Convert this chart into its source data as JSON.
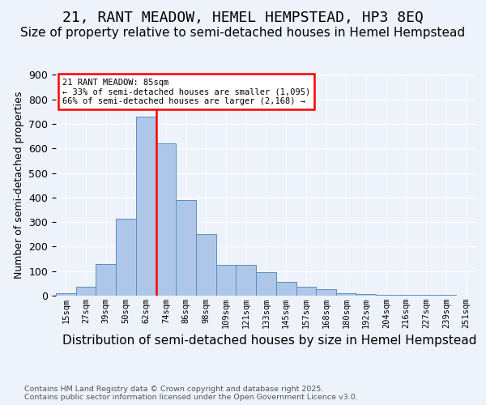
{
  "title": "21, RANT MEADOW, HEMEL HEMPSTEAD, HP3 8EQ",
  "subtitle": "Size of property relative to semi-detached houses in Hemel Hempstead",
  "xlabel": "Distribution of semi-detached houses by size in Hemel Hempstead",
  "ylabel": "Number of semi-detached properties",
  "bin_labels": [
    "15sqm",
    "27sqm",
    "39sqm",
    "50sqm",
    "62sqm",
    "74sqm",
    "86sqm",
    "98sqm",
    "109sqm",
    "121sqm",
    "133sqm",
    "145sqm",
    "157sqm",
    "168sqm",
    "180sqm",
    "192sqm",
    "204sqm",
    "216sqm",
    "227sqm",
    "239sqm",
    "251sqm"
  ],
  "bar_heights": [
    10,
    35,
    130,
    315,
    730,
    620,
    390,
    250,
    125,
    125,
    95,
    55,
    35,
    25,
    10,
    8,
    3,
    2,
    3,
    2,
    0
  ],
  "bar_color": "#aec6e8",
  "bar_edge_color": "#5a8fc0",
  "vline_bin": 5,
  "annotation_title": "21 RANT MEADOW: 85sqm",
  "annotation_line1": "← 33% of semi-detached houses are smaller (1,095)",
  "annotation_line2": "66% of semi-detached houses are larger (2,168) →",
  "ylim": [
    0,
    900
  ],
  "yticks": [
    0,
    100,
    200,
    300,
    400,
    500,
    600,
    700,
    800,
    900
  ],
  "title_fontsize": 13,
  "subtitle_fontsize": 11,
  "xlabel_fontsize": 11,
  "ylabel_fontsize": 9,
  "footnote": "Contains HM Land Registry data © Crown copyright and database right 2025.\nContains public sector information licensed under the Open Government Licence v3.0.",
  "bg_color": "#eef2fb"
}
